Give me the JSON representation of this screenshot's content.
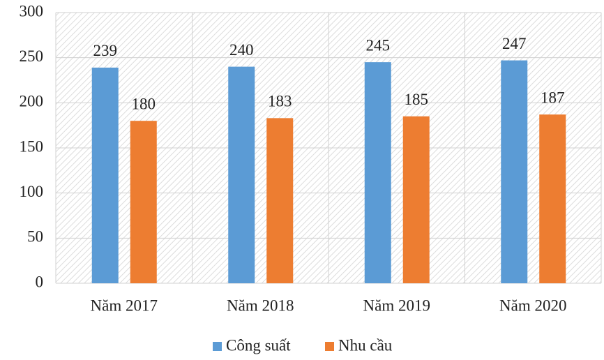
{
  "chart_data": {
    "type": "bar",
    "categories": [
      "Năm 2017",
      "Năm 2018",
      "Năm 2019",
      "Năm 2020"
    ],
    "series": [
      {
        "name": "Công suất",
        "color": "#5b9bd5",
        "values": [
          239,
          240,
          245,
          247
        ]
      },
      {
        "name": "Nhu cầu",
        "color": "#ed7d31",
        "values": [
          180,
          183,
          185,
          187
        ]
      }
    ],
    "ylim": [
      0,
      300
    ],
    "yticks": [
      0,
      50,
      100,
      150,
      200,
      250,
      300
    ],
    "grid": true,
    "legend": "bottom"
  }
}
